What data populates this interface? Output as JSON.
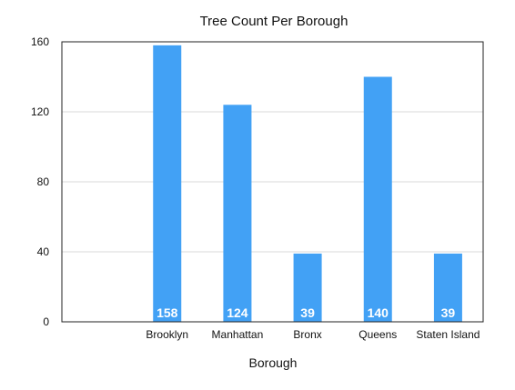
{
  "chart_data": {
    "type": "bar",
    "title": "Tree Count Per Borough",
    "xlabel": "Borough",
    "ylabel": "",
    "categories": [
      "",
      "Brooklyn",
      "Manhattan",
      "Bronx",
      "Queens",
      "Staten Island"
    ],
    "values": [
      null,
      158,
      124,
      39,
      140,
      39
    ],
    "data_labels": [
      "",
      "158",
      "124",
      "39",
      "140",
      "39"
    ],
    "ylim": [
      0,
      160
    ],
    "yticks": [
      0,
      40,
      80,
      120,
      160
    ],
    "ytick_labels": [
      "0",
      "40",
      "80",
      "120",
      "160"
    ],
    "grid": true,
    "legend": "none",
    "bar_color": "#42a1f5"
  }
}
